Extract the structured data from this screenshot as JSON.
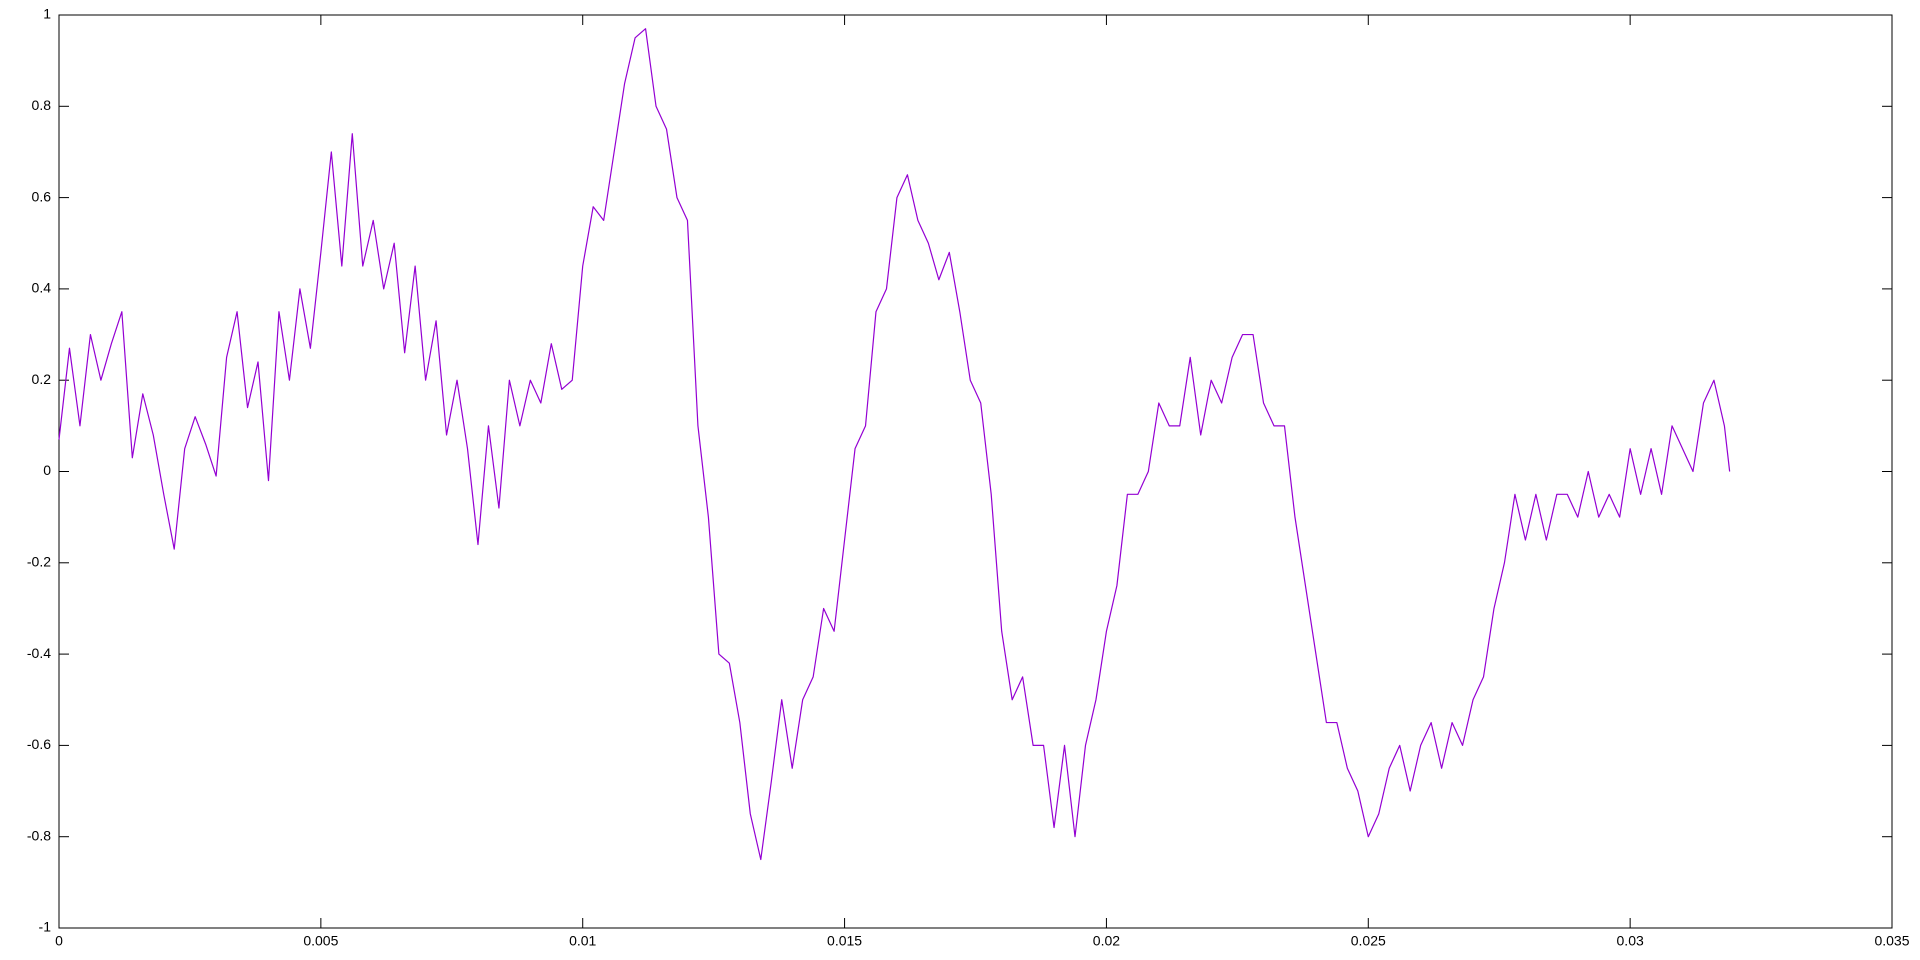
{
  "chart_data": {
    "type": "line",
    "x": [
      0,
      0.0002,
      0.0004,
      0.0006,
      0.0008,
      0.001,
      0.0012,
      0.0014,
      0.0016,
      0.0018,
      0.002,
      0.0022,
      0.0024,
      0.0026,
      0.0028,
      0.003,
      0.0032,
      0.0034,
      0.0036,
      0.0038,
      0.004,
      0.0042,
      0.0044,
      0.0046,
      0.0048,
      0.005,
      0.0052,
      0.0054,
      0.0056,
      0.0058,
      0.006,
      0.0062,
      0.0064,
      0.0066,
      0.0068,
      0.007,
      0.0072,
      0.0074,
      0.0076,
      0.0078,
      0.008,
      0.0082,
      0.0084,
      0.0086,
      0.0088,
      0.009,
      0.0092,
      0.0094,
      0.0096,
      0.0098,
      0.01,
      0.0102,
      0.0104,
      0.0106,
      0.0108,
      0.011,
      0.0112,
      0.0114,
      0.0116,
      0.0118,
      0.012,
      0.0122,
      0.0124,
      0.0126,
      0.0128,
      0.013,
      0.0132,
      0.0134,
      0.0136,
      0.0138,
      0.014,
      0.0142,
      0.0144,
      0.0146,
      0.0148,
      0.015,
      0.0152,
      0.0154,
      0.0156,
      0.0158,
      0.016,
      0.0162,
      0.0164,
      0.0166,
      0.0168,
      0.017,
      0.0172,
      0.0174,
      0.0176,
      0.0178,
      0.018,
      0.0182,
      0.0184,
      0.0186,
      0.0188,
      0.019,
      0.0192,
      0.0194,
      0.0196,
      0.0198,
      0.02,
      0.0202,
      0.0204,
      0.0206,
      0.0208,
      0.021,
      0.0212,
      0.0214,
      0.0216,
      0.0218,
      0.022,
      0.0222,
      0.0224,
      0.0226,
      0.0228,
      0.023,
      0.0232,
      0.0234,
      0.0236,
      0.0238,
      0.024,
      0.0242,
      0.0244,
      0.0246,
      0.0248,
      0.025,
      0.0252,
      0.0254,
      0.0256,
      0.0258,
      0.026,
      0.0262,
      0.0264,
      0.0266,
      0.0268,
      0.027,
      0.0272,
      0.0274,
      0.0276,
      0.0278,
      0.028,
      0.0282,
      0.0284,
      0.0286,
      0.0288,
      0.029,
      0.0292,
      0.0294,
      0.0296,
      0.0298,
      0.03,
      0.0302,
      0.0304,
      0.0306,
      0.0308,
      0.031,
      0.0312,
      0.0314,
      0.0316,
      0.0318,
      0.0319
    ],
    "values": [
      0.07,
      0.27,
      0.1,
      0.3,
      0.2,
      0.28,
      0.35,
      0.03,
      0.17,
      0.08,
      -0.05,
      -0.17,
      0.05,
      0.12,
      0.06,
      -0.01,
      0.25,
      0.35,
      0.14,
      0.24,
      -0.02,
      0.35,
      0.2,
      0.4,
      0.27,
      0.48,
      0.7,
      0.45,
      0.74,
      0.45,
      0.55,
      0.4,
      0.5,
      0.26,
      0.45,
      0.2,
      0.33,
      0.08,
      0.2,
      0.05,
      -0.16,
      0.1,
      -0.08,
      0.2,
      0.1,
      0.2,
      0.15,
      0.28,
      0.18,
      0.2,
      0.45,
      0.58,
      0.55,
      0.7,
      0.85,
      0.95,
      0.97,
      0.8,
      0.75,
      0.6,
      0.55,
      0.1,
      -0.1,
      -0.4,
      -0.42,
      -0.55,
      -0.75,
      -0.85,
      -0.68,
      -0.5,
      -0.65,
      -0.5,
      -0.45,
      -0.3,
      -0.35,
      -0.15,
      0.05,
      0.1,
      0.35,
      0.4,
      0.6,
      0.65,
      0.55,
      0.5,
      0.42,
      0.48,
      0.35,
      0.2,
      0.15,
      -0.05,
      -0.35,
      -0.5,
      -0.45,
      -0.6,
      -0.6,
      -0.78,
      -0.6,
      -0.8,
      -0.6,
      -0.5,
      -0.35,
      -0.25,
      -0.05,
      -0.05,
      0.0,
      0.15,
      0.1,
      0.1,
      0.25,
      0.08,
      0.2,
      0.15,
      0.25,
      0.3,
      0.3,
      0.15,
      0.1,
      0.1,
      -0.1,
      -0.25,
      -0.4,
      -0.55,
      -0.55,
      -0.65,
      -0.7,
      -0.8,
      -0.75,
      -0.65,
      -0.6,
      -0.7,
      -0.6,
      -0.55,
      -0.65,
      -0.55,
      -0.6,
      -0.5,
      -0.45,
      -0.3,
      -0.2,
      -0.05,
      -0.15,
      -0.05,
      -0.15,
      -0.05,
      -0.05,
      -0.1,
      0.0,
      -0.1,
      -0.05,
      -0.1,
      0.05,
      -0.05,
      0.05,
      -0.05,
      0.1,
      0.05,
      0.0,
      0.15,
      0.2,
      0.1,
      0.0
    ],
    "color": "#9400d3",
    "xlim": [
      0,
      0.035
    ],
    "xticks": [
      0,
      0.005,
      0.01,
      0.015,
      0.02,
      0.025,
      0.03,
      0.035
    ],
    "ylim": [
      -1,
      1
    ],
    "yticks": [
      -1,
      -0.8,
      -0.6,
      -0.4,
      -0.2,
      0,
      0.2,
      0.4,
      0.6,
      0.8,
      1
    ],
    "grid": false
  }
}
